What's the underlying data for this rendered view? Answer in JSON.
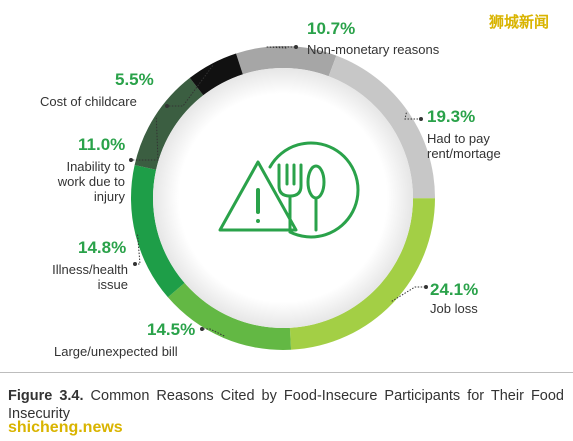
{
  "chart_data": {
    "type": "pie",
    "style": "donut",
    "categories": [
      "Non-monetary reasons",
      "Had to pay rent/mortage",
      "Job loss",
      "Large/unexpected bill",
      "Illness/health issue",
      "Inability to work due to injury",
      "Cost of childcare"
    ],
    "values": [
      10.7,
      19.3,
      24.1,
      14.5,
      14.8,
      11.0,
      5.5
    ],
    "value_labels": [
      "10.7%",
      "19.3%",
      "24.1%",
      "14.5%",
      "14.8%",
      "11.0%",
      "5.5%"
    ],
    "colors": [
      "#a6a6a6",
      "#c7c7c7",
      "#a3cf45",
      "#63b844",
      "#1e9e48",
      "#3b5e41",
      "#111111"
    ],
    "label_color": "#2aa24a"
  },
  "caption": {
    "figure": "Figure 3.4.",
    "text": " Common Reasons Cited by Food-Insecure Participants for Their Food Insecurity"
  },
  "watermarks": {
    "top_right": "狮城新闻",
    "bottom_left": "shicheng.news"
  },
  "icon": "food-insecurity-warning-icon"
}
